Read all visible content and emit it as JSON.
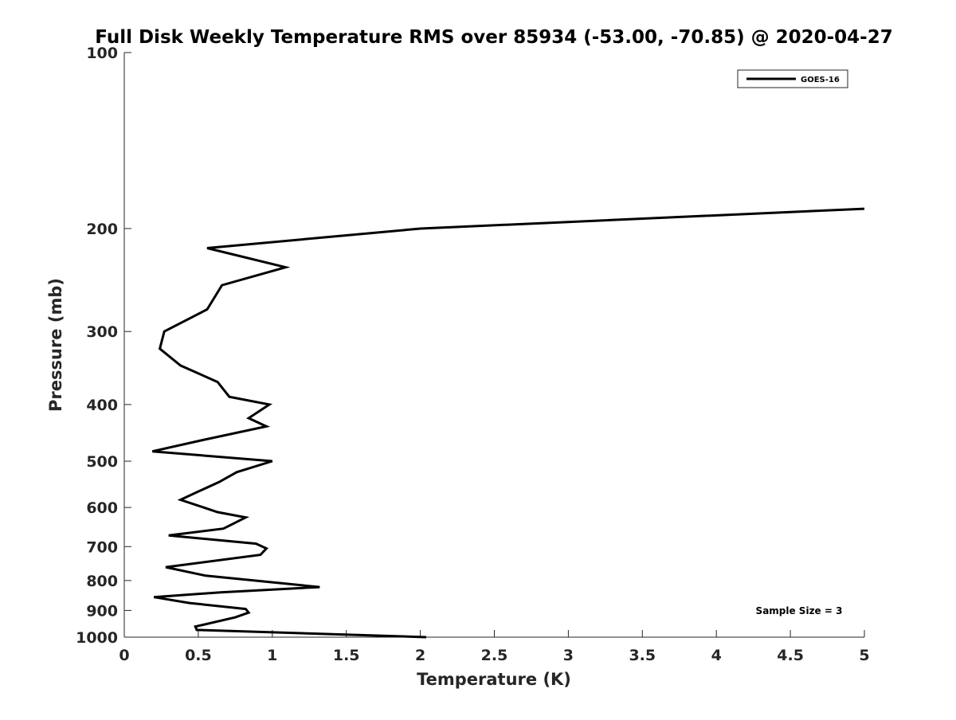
{
  "chart_data": {
    "type": "line",
    "title": "Full Disk Weekly Temperature RMS over 85934 (-53.00, -70.85) @ 2020-04-27",
    "xlabel": "Temperature (K)",
    "ylabel": "Pressure (mb)",
    "xlim": [
      0,
      5
    ],
    "ylim": [
      100,
      1000
    ],
    "y_scale": "log",
    "y_reversed": true,
    "grid": false,
    "legend_position": "top-right",
    "xticks": [
      0,
      0.5,
      1,
      1.5,
      2,
      2.5,
      3,
      3.5,
      4,
      4.5,
      5
    ],
    "xtick_labels": [
      "0",
      "0.5",
      "1",
      "1.5",
      "2",
      "2.5",
      "3",
      "3.5",
      "4",
      "4.5",
      "5"
    ],
    "yticks": [
      100,
      200,
      300,
      400,
      500,
      600,
      700,
      800,
      900,
      1000
    ],
    "ytick_labels": [
      "100",
      "200",
      "300",
      "400",
      "500",
      "600",
      "700",
      "800",
      "900",
      "1000"
    ],
    "series": [
      {
        "name": "GOES-16",
        "color": "#000000",
        "points": [
          [
            5.0,
            185
          ],
          [
            2.0,
            200
          ],
          [
            0.56,
            216
          ],
          [
            1.09,
            233
          ],
          [
            0.66,
            250
          ],
          [
            0.56,
            275
          ],
          [
            0.27,
            300
          ],
          [
            0.24,
            321
          ],
          [
            0.38,
            343
          ],
          [
            0.63,
            366
          ],
          [
            0.71,
            388
          ],
          [
            0.98,
            400
          ],
          [
            0.84,
            422
          ],
          [
            0.96,
            436
          ],
          [
            0.53,
            460
          ],
          [
            0.19,
            481
          ],
          [
            1.0,
            500
          ],
          [
            0.76,
            522
          ],
          [
            0.64,
            543
          ],
          [
            0.49,
            565
          ],
          [
            0.38,
            582
          ],
          [
            0.63,
            611
          ],
          [
            0.82,
            624
          ],
          [
            0.67,
            652
          ],
          [
            0.3,
            670
          ],
          [
            0.89,
            692
          ],
          [
            0.96,
            705
          ],
          [
            0.92,
            723
          ],
          [
            0.28,
            759
          ],
          [
            0.55,
            785
          ],
          [
            1.32,
            821
          ],
          [
            0.65,
            838
          ],
          [
            0.2,
            854
          ],
          [
            0.44,
            874
          ],
          [
            0.82,
            895
          ],
          [
            0.84,
            908
          ],
          [
            0.75,
            925
          ],
          [
            0.48,
            959
          ],
          [
            0.49,
            972
          ],
          [
            2.04,
            1000
          ]
        ]
      }
    ],
    "annotation": "Sample Size = 3"
  }
}
